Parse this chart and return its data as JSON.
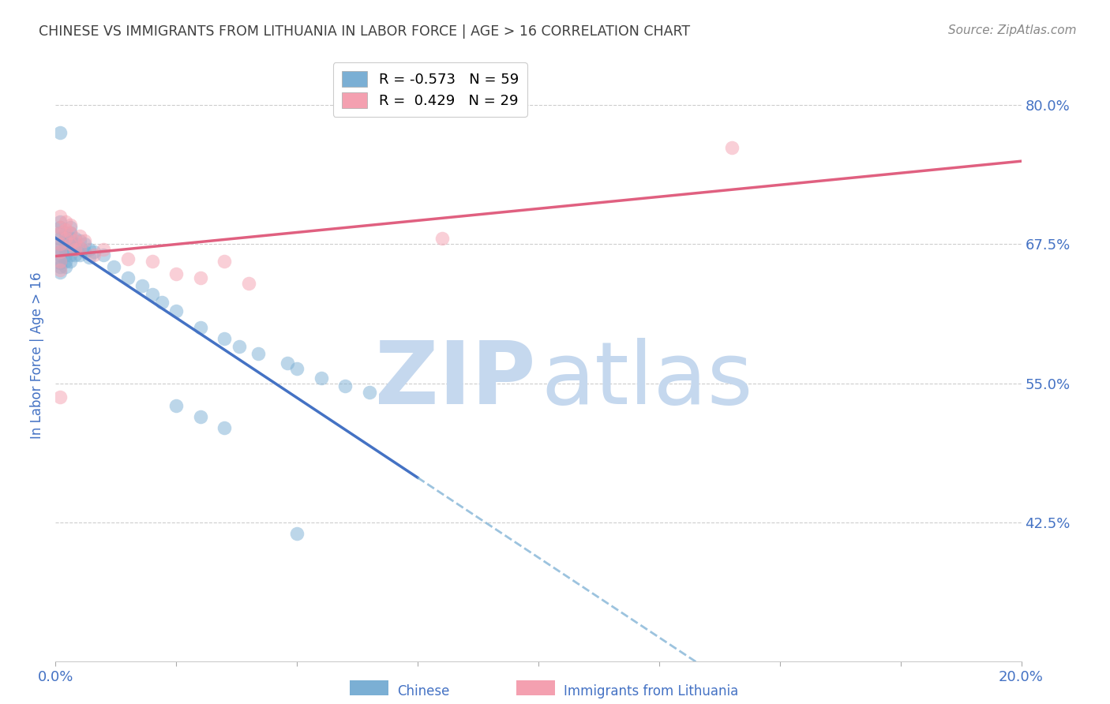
{
  "title": "CHINESE VS IMMIGRANTS FROM LITHUANIA IN LABOR FORCE | AGE > 16 CORRELATION CHART",
  "source": "Source: ZipAtlas.com",
  "ylabel": "In Labor Force | Age > 16",
  "xlim": [
    0.0,
    0.2
  ],
  "ylim": [
    0.3,
    0.85
  ],
  "yticks": [
    0.425,
    0.55,
    0.675,
    0.8
  ],
  "ytick_labels": [
    "42.5%",
    "55.0%",
    "67.5%",
    "80.0%"
  ],
  "xticks": [
    0.0,
    0.025,
    0.05,
    0.075,
    0.1,
    0.125,
    0.15,
    0.175,
    0.2
  ],
  "xtick_labels": [
    "0.0%",
    "",
    "",
    "",
    "",
    "",
    "",
    "",
    "20.0%"
  ],
  "legend_entries": [
    {
      "label": "R = -0.573   N = 59"
    },
    {
      "label": "R =  0.429   N = 29"
    }
  ],
  "chinese_scatter": [
    [
      0.001,
      0.775
    ],
    [
      0.001,
      0.695
    ],
    [
      0.001,
      0.69
    ],
    [
      0.001,
      0.685
    ],
    [
      0.001,
      0.68
    ],
    [
      0.001,
      0.675
    ],
    [
      0.001,
      0.672
    ],
    [
      0.001,
      0.668
    ],
    [
      0.001,
      0.665
    ],
    [
      0.001,
      0.66
    ],
    [
      0.001,
      0.658
    ],
    [
      0.001,
      0.655
    ],
    [
      0.001,
      0.65
    ],
    [
      0.002,
      0.685
    ],
    [
      0.002,
      0.68
    ],
    [
      0.002,
      0.675
    ],
    [
      0.002,
      0.67
    ],
    [
      0.002,
      0.665
    ],
    [
      0.002,
      0.66
    ],
    [
      0.002,
      0.655
    ],
    [
      0.003,
      0.69
    ],
    [
      0.003,
      0.685
    ],
    [
      0.003,
      0.68
    ],
    [
      0.003,
      0.675
    ],
    [
      0.003,
      0.67
    ],
    [
      0.003,
      0.665
    ],
    [
      0.003,
      0.66
    ],
    [
      0.004,
      0.68
    ],
    [
      0.004,
      0.675
    ],
    [
      0.004,
      0.67
    ],
    [
      0.004,
      0.665
    ],
    [
      0.005,
      0.678
    ],
    [
      0.005,
      0.672
    ],
    [
      0.005,
      0.665
    ],
    [
      0.006,
      0.675
    ],
    [
      0.006,
      0.668
    ],
    [
      0.007,
      0.67
    ],
    [
      0.007,
      0.663
    ],
    [
      0.008,
      0.668
    ],
    [
      0.01,
      0.665
    ],
    [
      0.012,
      0.655
    ],
    [
      0.015,
      0.645
    ],
    [
      0.018,
      0.638
    ],
    [
      0.02,
      0.63
    ],
    [
      0.022,
      0.623
    ],
    [
      0.025,
      0.615
    ],
    [
      0.03,
      0.6
    ],
    [
      0.035,
      0.59
    ],
    [
      0.038,
      0.583
    ],
    [
      0.042,
      0.577
    ],
    [
      0.048,
      0.568
    ],
    [
      0.05,
      0.563
    ],
    [
      0.055,
      0.555
    ],
    [
      0.06,
      0.548
    ],
    [
      0.065,
      0.542
    ],
    [
      0.05,
      0.415
    ],
    [
      0.03,
      0.52
    ],
    [
      0.035,
      0.51
    ],
    [
      0.025,
      0.53
    ]
  ],
  "lithuania_scatter": [
    [
      0.001,
      0.7
    ],
    [
      0.001,
      0.69
    ],
    [
      0.001,
      0.685
    ],
    [
      0.001,
      0.675
    ],
    [
      0.001,
      0.668
    ],
    [
      0.001,
      0.66
    ],
    [
      0.001,
      0.652
    ],
    [
      0.002,
      0.695
    ],
    [
      0.002,
      0.688
    ],
    [
      0.002,
      0.68
    ],
    [
      0.003,
      0.692
    ],
    [
      0.003,
      0.685
    ],
    [
      0.003,
      0.675
    ],
    [
      0.004,
      0.678
    ],
    [
      0.004,
      0.67
    ],
    [
      0.005,
      0.682
    ],
    [
      0.005,
      0.672
    ],
    [
      0.006,
      0.678
    ],
    [
      0.008,
      0.665
    ],
    [
      0.01,
      0.67
    ],
    [
      0.015,
      0.662
    ],
    [
      0.02,
      0.66
    ],
    [
      0.025,
      0.648
    ],
    [
      0.03,
      0.645
    ],
    [
      0.035,
      0.66
    ],
    [
      0.04,
      0.64
    ],
    [
      0.08,
      0.68
    ],
    [
      0.14,
      0.762
    ],
    [
      0.001,
      0.538
    ]
  ],
  "chinese_line_color": "#4472C4",
  "chinese_line_solid_end_x": 0.075,
  "lithuania_line_color": "#E06080",
  "scatter_blue": "#7BAFD4",
  "scatter_pink": "#F4A0B0",
  "background_color": "#FFFFFF",
  "grid_color": "#C8C8C8",
  "axis_color": "#4472C4",
  "title_color": "#404040",
  "watermark_color_ZIP": "#C5D8EE",
  "watermark_color_atlas": "#C5D8EE"
}
